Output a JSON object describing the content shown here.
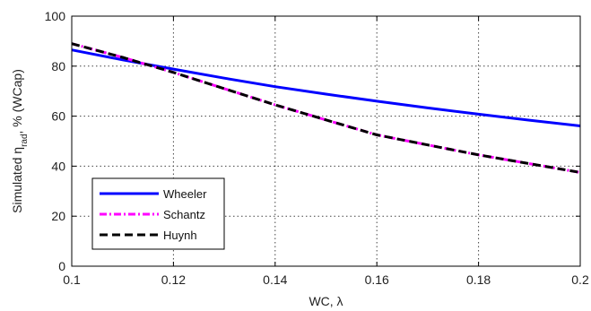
{
  "chart_data": {
    "type": "line",
    "xlabel": "WC, λ",
    "ylabel_prefix": "Simulated η",
    "ylabel_subscript": "rad",
    "ylabel_suffix": ", % (WCap)",
    "xlim": [
      0.1,
      0.2
    ],
    "ylim": [
      0,
      100
    ],
    "xticks": [
      0.1,
      0.12,
      0.14,
      0.16,
      0.18,
      0.2
    ],
    "xtick_labels": [
      "0.1",
      "0.12",
      "0.14",
      "0.16",
      "0.18",
      "0.2"
    ],
    "yticks": [
      0,
      20,
      40,
      60,
      80,
      100
    ],
    "ytick_labels": [
      "0",
      "20",
      "40",
      "60",
      "80",
      "100"
    ],
    "grid": true,
    "legend_position": "bottom-left",
    "series": [
      {
        "name": "Wheeler",
        "color": "#0000ff",
        "style": "solid",
        "x": [
          0.1,
          0.11,
          0.12,
          0.13,
          0.14,
          0.15,
          0.16,
          0.17,
          0.18,
          0.19,
          0.2
        ],
        "y": [
          86.5,
          82.5,
          78.8,
          75.2,
          71.8,
          68.8,
          66.0,
          63.3,
          60.8,
          58.4,
          56.1
        ]
      },
      {
        "name": "Schantz",
        "color": "#ff00ff",
        "style": "dashdot",
        "x": [
          0.1,
          0.11,
          0.12,
          0.13,
          0.14,
          0.15,
          0.16,
          0.17,
          0.18,
          0.19,
          0.2
        ],
        "y": [
          89.0,
          83.5,
          77.5,
          71.0,
          64.5,
          58.5,
          52.5,
          48.5,
          44.5,
          41.0,
          37.5
        ]
      },
      {
        "name": "Huynh",
        "color": "#000000",
        "style": "dashed",
        "x": [
          0.1,
          0.11,
          0.12,
          0.13,
          0.14,
          0.15,
          0.16,
          0.17,
          0.18,
          0.19,
          0.2
        ],
        "y": [
          89.0,
          83.5,
          77.5,
          71.0,
          64.5,
          58.5,
          52.5,
          48.5,
          44.5,
          41.0,
          37.5
        ]
      }
    ]
  }
}
